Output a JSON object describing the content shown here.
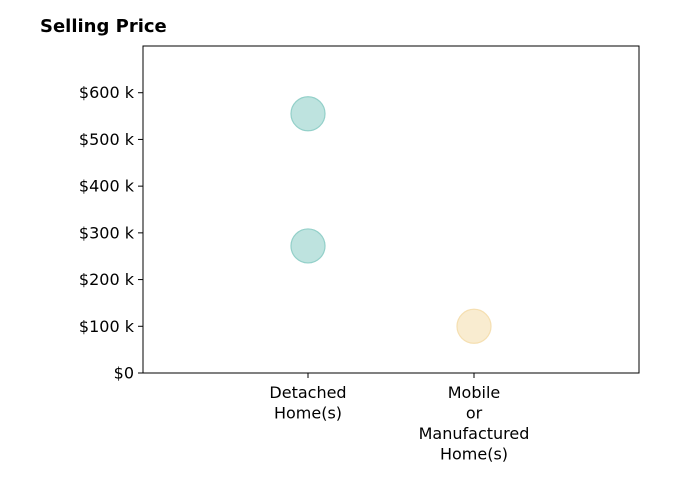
{
  "chart_data": {
    "type": "scatter",
    "title": "Selling Price",
    "xlabel": "",
    "ylabel": "",
    "categories": [
      [
        "Detached",
        "Home(s)"
      ],
      [
        "Mobile",
        "or",
        "Manufactured",
        "Home(s)"
      ]
    ],
    "ylim": [
      0,
      700000
    ],
    "yticks": [
      0,
      100000,
      200000,
      300000,
      400000,
      500000,
      600000
    ],
    "ytick_labels": [
      "$0",
      "$100 k",
      "$200 k",
      "$300 k",
      "$400 k",
      "$500 k",
      "$600 k"
    ],
    "grid": false,
    "points": [
      {
        "category_index": 0,
        "y": 555000,
        "color": "#93d0c9"
      },
      {
        "category_index": 0,
        "y": 272000,
        "color": "#93d0c9"
      },
      {
        "category_index": 1,
        "y": 100000,
        "color": "#f5dfb1"
      }
    ]
  }
}
